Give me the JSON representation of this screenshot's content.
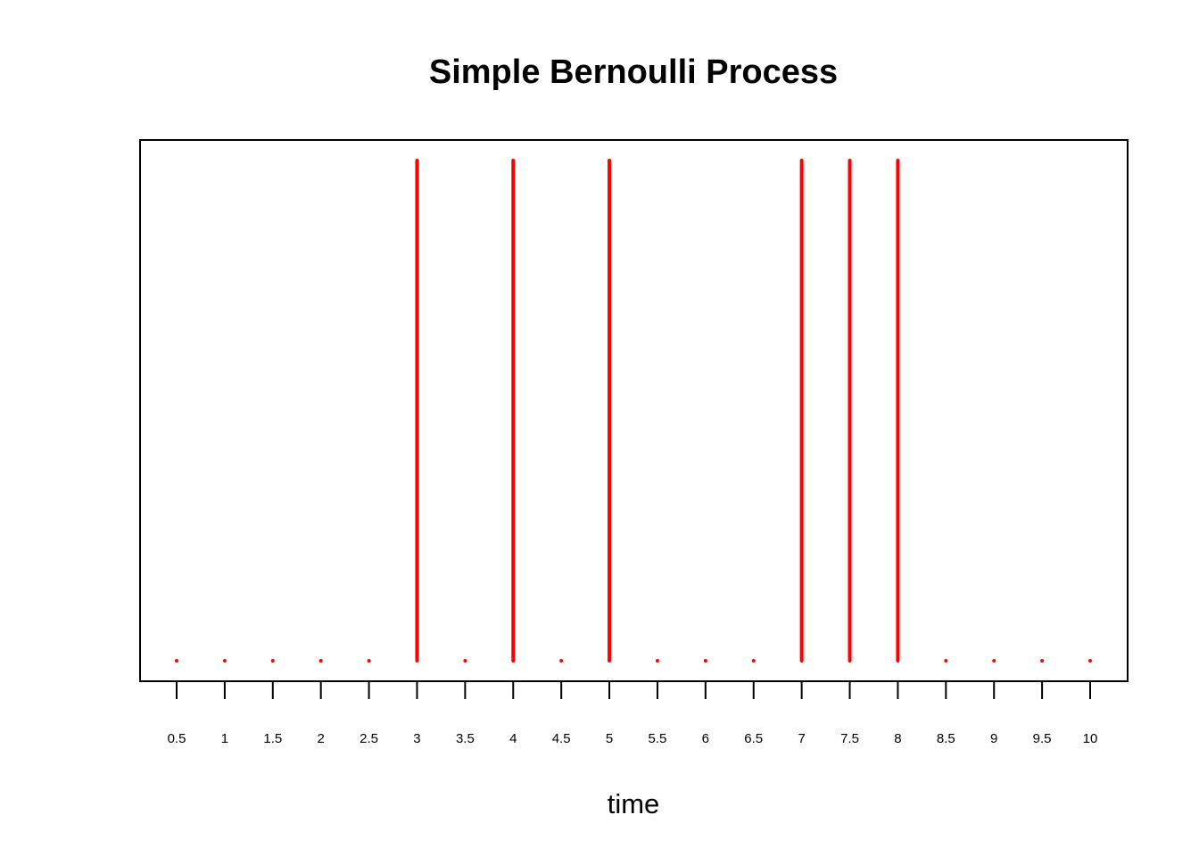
{
  "chart_data": {
    "type": "bar",
    "title": "Simple Bernoulli Process",
    "xlabel": "time",
    "ylabel": "",
    "x": [
      0.5,
      1,
      1.5,
      2,
      2.5,
      3,
      3.5,
      4,
      4.5,
      5,
      5.5,
      6,
      6.5,
      7,
      7.5,
      8,
      8.5,
      9,
      9.5,
      10
    ],
    "tick_labels": [
      "0.5",
      "1",
      "1.5",
      "2",
      "2.5",
      "3",
      "3.5",
      "4",
      "4.5",
      "5",
      "5.5",
      "6",
      "6.5",
      "7",
      "7.5",
      "8",
      "8.5",
      "9",
      "9.5",
      "10"
    ],
    "values": [
      0,
      0,
      0,
      0,
      0,
      1,
      0,
      1,
      0,
      1,
      0,
      0,
      0,
      1,
      1,
      1,
      0,
      0,
      0,
      0
    ],
    "ylim": [
      0,
      1
    ],
    "grid": false,
    "legend": "none",
    "color": "#ff0000"
  }
}
